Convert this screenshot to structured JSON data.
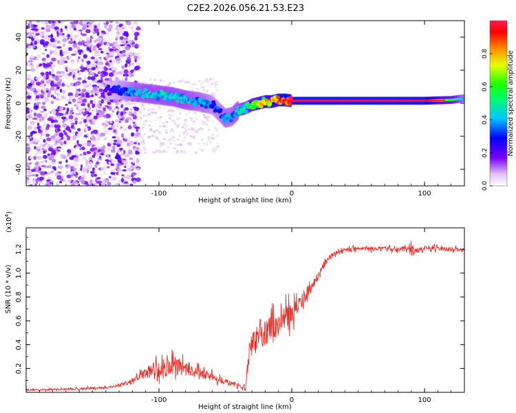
{
  "figure_title": "C2E2.2026.056.21.53.E23",
  "chart_data": [
    {
      "type": "heatmap",
      "title": "C2E2.2026.056.21.53.E23",
      "xlabel": "Height of straight line (km)",
      "ylabel": "Frequency (Hz)",
      "xlim": [
        -200,
        130
      ],
      "ylim": [
        -50,
        50
      ],
      "x_ticks": [
        -100,
        0,
        100
      ],
      "x_tick_labels": [
        "-100",
        "0",
        "100"
      ],
      "y_ticks": [
        -40,
        -20,
        0,
        20,
        40
      ],
      "y_tick_labels": [
        "-40",
        "-20",
        "0",
        "20",
        "40"
      ],
      "colorbar": {
        "label": "Normalized spectral amplitude",
        "range": [
          0,
          1
        ],
        "ticks": [
          0.0,
          0.2,
          0.4,
          0.6,
          0.8
        ],
        "tick_labels": [
          "0.0",
          "0.2",
          "0.4",
          "0.6",
          "0.8"
        ]
      },
      "ridge": {
        "description_free": true,
        "x": [
          -140,
          -130,
          -120,
          -110,
          -100,
          -90,
          -80,
          -70,
          -60,
          -55,
          -50,
          -45,
          -40,
          -35,
          -30,
          -25,
          -20,
          -15,
          -10,
          -5,
          0,
          10,
          20,
          40,
          60,
          80,
          100,
          120,
          130
        ],
        "freq": [
          8,
          8,
          7,
          6,
          5,
          4,
          2,
          1,
          -1,
          -5,
          -9,
          -8,
          -4,
          -3,
          -1,
          0,
          1,
          1,
          2,
          2,
          1.5,
          1.5,
          1.5,
          1.5,
          1.5,
          1.5,
          1.5,
          2,
          3
        ],
        "amplitude": [
          0.25,
          0.3,
          0.4,
          0.45,
          0.45,
          0.45,
          0.45,
          0.4,
          0.35,
          0.35,
          0.4,
          0.4,
          0.45,
          0.5,
          0.6,
          0.7,
          0.8,
          0.85,
          0.9,
          0.95,
          1.0,
          1.0,
          1.0,
          1.0,
          1.0,
          1.0,
          1.0,
          0.6,
          0.4
        ]
      }
    },
    {
      "type": "line",
      "title": "",
      "xlabel": "Height of straight line (km)",
      "ylabel": "SNR (10 * v/v)",
      "scale_label": "(x10",
      "scale_exponent": "4",
      "xlim": [
        -200,
        130
      ],
      "ylim": [
        0,
        13800
      ],
      "x_ticks": [
        -100,
        0,
        100
      ],
      "x_tick_labels": [
        "-100",
        "0",
        "100"
      ],
      "y_ticks": [
        2000,
        4000,
        6000,
        8000,
        10000,
        12000
      ],
      "y_tick_labels": [
        "0.2",
        "0.4",
        "0.6",
        "0.8",
        "1.0",
        "1.2"
      ],
      "series": [
        {
          "name": "SNR",
          "color": "#e8302a",
          "x": [
            -200,
            -180,
            -160,
            -140,
            -130,
            -120,
            -115,
            -110,
            -105,
            -100,
            -95,
            -90,
            -85,
            -80,
            -75,
            -70,
            -65,
            -60,
            -55,
            -50,
            -45,
            -40,
            -35,
            -33,
            -30,
            -25,
            -20,
            -15,
            -10,
            -5,
            0,
            5,
            10,
            15,
            20,
            25,
            30,
            40,
            50,
            60,
            70,
            80,
            88,
            90,
            92,
            100,
            110,
            120,
            130
          ],
          "values": [
            200,
            250,
            300,
            400,
            600,
            900,
            1300,
            1600,
            1900,
            2000,
            2100,
            2300,
            2200,
            2000,
            1900,
            1600,
            1500,
            1300,
            1100,
            900,
            700,
            500,
            400,
            2200,
            4100,
            4500,
            5000,
            5400,
            5800,
            6300,
            6700,
            7300,
            8100,
            8900,
            9800,
            10800,
            11500,
            12000,
            12100,
            12050,
            12050,
            12000,
            12000,
            12300,
            11800,
            12100,
            12050,
            12000,
            11900
          ],
          "noise_amplitude": [
            150,
            150,
            150,
            200,
            250,
            400,
            600,
            900,
            1300,
            1500,
            1600,
            1700,
            1500,
            1200,
            1100,
            900,
            800,
            700,
            600,
            500,
            400,
            300,
            300,
            1500,
            2200,
            2200,
            2200,
            2200,
            2200,
            2000,
            1800,
            1500,
            1200,
            900,
            700,
            500,
            400,
            350,
            350,
            350,
            350,
            350,
            400,
            2200,
            400,
            350,
            350,
            350,
            350
          ]
        }
      ]
    }
  ]
}
